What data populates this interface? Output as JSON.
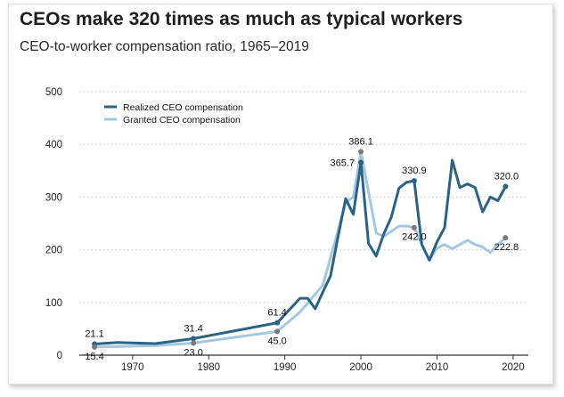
{
  "title": "CEOs make 320 times as much as typical workers",
  "subtitle": "CEO-to-worker compensation ratio, 1965–2019",
  "colors": {
    "realized": "#2c6384",
    "granted": "#a3c8e4",
    "marker_grey": "#7a7a7a",
    "grid": "#cfcfcf"
  },
  "chart_data": {
    "type": "line",
    "xlim": [
      1963,
      2022
    ],
    "ylim": [
      0,
      500
    ],
    "x_ticks": [
      1970,
      1980,
      1990,
      2000,
      2010,
      2020
    ],
    "y_ticks": [
      0,
      100,
      200,
      300,
      400,
      500
    ],
    "grid": "horizontal dotted",
    "legend": "top-left",
    "series": [
      {
        "name": "Realized CEO compensation",
        "points": [
          [
            1965,
            21.1
          ],
          [
            1968,
            24
          ],
          [
            1973,
            22
          ],
          [
            1978,
            31.4
          ],
          [
            1989,
            61.4
          ],
          [
            1992,
            108
          ],
          [
            1993,
            108
          ],
          [
            1994,
            88
          ],
          [
            1995,
            120
          ],
          [
            1996,
            150
          ],
          [
            1997,
            225
          ],
          [
            1998,
            297
          ],
          [
            1999,
            267
          ],
          [
            2000,
            365.7
          ],
          [
            2001,
            212
          ],
          [
            2002,
            188
          ],
          [
            2003,
            230
          ],
          [
            2004,
            262
          ],
          [
            2005,
            317
          ],
          [
            2006,
            328
          ],
          [
            2007,
            330.9
          ],
          [
            2008,
            210
          ],
          [
            2009,
            180
          ],
          [
            2010,
            215
          ],
          [
            2011,
            242
          ],
          [
            2012,
            370
          ],
          [
            2013,
            318
          ],
          [
            2014,
            325
          ],
          [
            2015,
            318
          ],
          [
            2016,
            272
          ],
          [
            2017,
            300
          ],
          [
            2018,
            293
          ],
          [
            2019,
            320.0
          ]
        ]
      },
      {
        "name": "Granted CEO compensation",
        "points": [
          [
            1965,
            15.4
          ],
          [
            1973,
            18
          ],
          [
            1978,
            23.0
          ],
          [
            1989,
            45.0
          ],
          [
            1992,
            82
          ],
          [
            1995,
            133
          ],
          [
            1998,
            290
          ],
          [
            1999,
            300
          ],
          [
            2000,
            386.1
          ],
          [
            2001,
            310
          ],
          [
            2002,
            232
          ],
          [
            2003,
            225
          ],
          [
            2004,
            235
          ],
          [
            2005,
            245
          ],
          [
            2006,
            245
          ],
          [
            2007,
            242.0
          ],
          [
            2008,
            210
          ],
          [
            2009,
            180
          ],
          [
            2010,
            203
          ],
          [
            2011,
            210
          ],
          [
            2012,
            202
          ],
          [
            2013,
            210
          ],
          [
            2014,
            218
          ],
          [
            2015,
            210
          ],
          [
            2016,
            205
          ],
          [
            2017,
            195
          ],
          [
            2018,
            210
          ],
          [
            2019,
            222.8
          ]
        ]
      }
    ],
    "annotations": [
      {
        "series": 0,
        "x": 1965,
        "y": 21.1,
        "text": "21.1",
        "pos": "above"
      },
      {
        "series": 1,
        "x": 1965,
        "y": 15.4,
        "text": "15.4",
        "pos": "below"
      },
      {
        "series": 0,
        "x": 1978,
        "y": 31.4,
        "text": "31.4",
        "pos": "above"
      },
      {
        "series": 1,
        "x": 1978,
        "y": 23.0,
        "text": "23.0",
        "pos": "below"
      },
      {
        "series": 0,
        "x": 1989,
        "y": 61.4,
        "text": "61.4",
        "pos": "above"
      },
      {
        "series": 1,
        "x": 1989,
        "y": 45.0,
        "text": "45.0",
        "pos": "below"
      },
      {
        "series": 0,
        "x": 2000,
        "y": 365.7,
        "text": "365.7",
        "pos": "left"
      },
      {
        "series": 1,
        "x": 2000,
        "y": 386.1,
        "text": "386.1",
        "pos": "above"
      },
      {
        "series": 0,
        "x": 2007,
        "y": 330.9,
        "text": "330.9",
        "pos": "above"
      },
      {
        "series": 1,
        "x": 2007,
        "y": 242.0,
        "text": "242.0",
        "pos": "below"
      },
      {
        "series": 0,
        "x": 2019,
        "y": 320.0,
        "text": "320.0",
        "pos": "above"
      },
      {
        "series": 1,
        "x": 2019,
        "y": 222.8,
        "text": "222.8",
        "pos": "below"
      }
    ]
  }
}
